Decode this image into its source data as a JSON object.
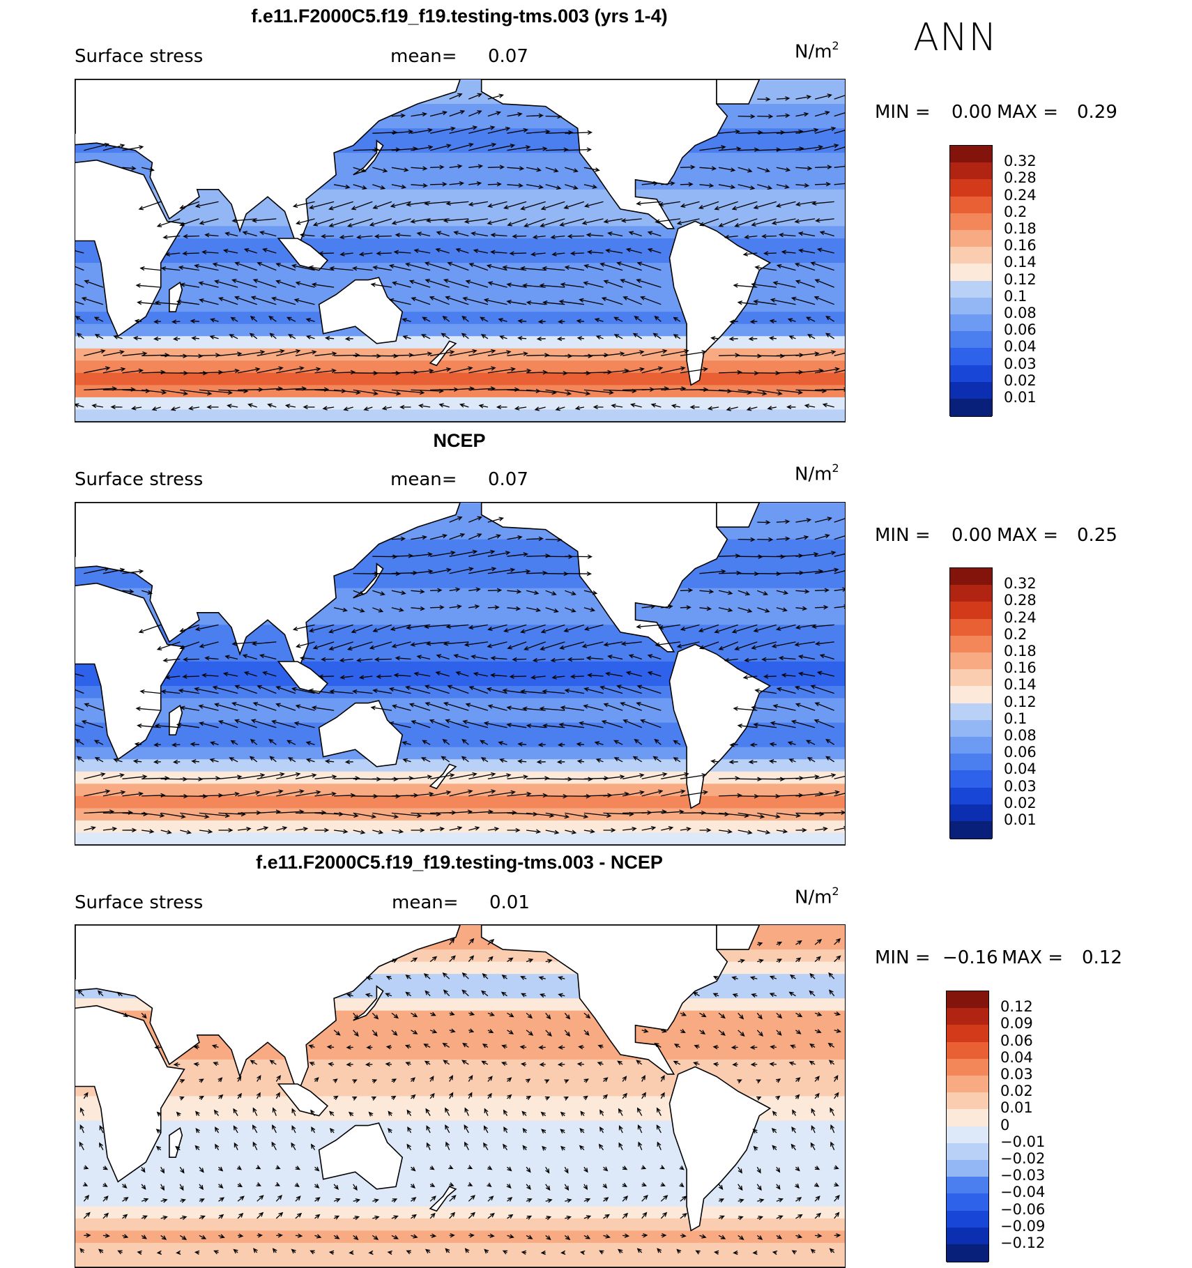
{
  "figure": {
    "season": "ANN",
    "colors": {
      "seq": [
        "#08207a",
        "#0b2fb0",
        "#1846d6",
        "#2e62ea",
        "#4b7fef",
        "#6d9af2",
        "#93b7f4",
        "#b9d1f6",
        "#dde8f8",
        "#fde9d9",
        "#fbcdb0",
        "#f8ab82",
        "#f3875a",
        "#e86033",
        "#d23a19",
        "#b02411",
        "#82140c"
      ]
    }
  },
  "chart_data": [
    {
      "type": "heatmap",
      "title": "f.e11.F2000C5.f19_f19.testing-tms.003 (yrs 1-4)",
      "variable": "Surface stress",
      "mean_label": "mean=",
      "mean_value": "0.07",
      "units_base": "N/m",
      "units_exp": "2",
      "min_label": "MIN =",
      "min_value": "0.00",
      "max_label": "MAX =",
      "max_value": "0.29",
      "colorbar_levels": [
        "0.32",
        "0.28",
        "0.24",
        "0.2",
        "0.18",
        "0.16",
        "0.14",
        "0.12",
        "0.1",
        "0.08",
        "0.06",
        "0.04",
        "0.03",
        "0.02",
        "0.01"
      ],
      "bands": [
        {
          "lat": 60,
          "value": 0.08
        },
        {
          "lat": 45,
          "value": 0.05
        },
        {
          "lat": 30,
          "value": 0.07
        },
        {
          "lat": 15,
          "value": 0.09
        },
        {
          "lat": 0,
          "value": 0.04
        },
        {
          "lat": -15,
          "value": 0.08
        },
        {
          "lat": -30,
          "value": 0.05
        },
        {
          "lat": -45,
          "value": 0.22
        },
        {
          "lat": -55,
          "value": 0.25
        },
        {
          "lat": -65,
          "value": 0.1
        }
      ],
      "wind_u": [
        {
          "lat": 60,
          "u": 0.6,
          "v": 0.1
        },
        {
          "lat": 45,
          "u": 1.0,
          "v": 0.15
        },
        {
          "lat": 30,
          "u": 0.6,
          "v": -0.05
        },
        {
          "lat": 15,
          "u": -0.9,
          "v": -0.2
        },
        {
          "lat": 0,
          "u": -0.6,
          "v": 0.05
        },
        {
          "lat": -15,
          "u": -0.9,
          "v": 0.2
        },
        {
          "lat": -30,
          "u": -0.3,
          "v": 0.1
        },
        {
          "lat": -45,
          "u": 1.0,
          "v": 0.1
        },
        {
          "lat": -55,
          "u": 1.2,
          "v": -0.05
        },
        {
          "lat": -65,
          "u": -0.4,
          "v": 0.0
        }
      ]
    },
    {
      "type": "heatmap",
      "title": "NCEP",
      "variable": "Surface stress",
      "mean_label": "mean=",
      "mean_value": "0.07",
      "units_base": "N/m",
      "units_exp": "2",
      "min_label": "MIN =",
      "min_value": "0.00",
      "max_label": "MAX =",
      "max_value": "0.25",
      "colorbar_levels": [
        "0.32",
        "0.28",
        "0.24",
        "0.2",
        "0.18",
        "0.16",
        "0.14",
        "0.12",
        "0.1",
        "0.08",
        "0.06",
        "0.04",
        "0.03",
        "0.02",
        "0.01"
      ],
      "bands": [
        {
          "lat": 60,
          "value": 0.07
        },
        {
          "lat": 45,
          "value": 0.04
        },
        {
          "lat": 30,
          "value": 0.07
        },
        {
          "lat": 15,
          "value": 0.05
        },
        {
          "lat": 0,
          "value": 0.03
        },
        {
          "lat": -15,
          "value": 0.07
        },
        {
          "lat": -30,
          "value": 0.04
        },
        {
          "lat": -45,
          "value": 0.18
        },
        {
          "lat": -55,
          "value": 0.21
        },
        {
          "lat": -65,
          "value": 0.12
        }
      ],
      "wind_u": [
        {
          "lat": 60,
          "u": 0.6,
          "v": 0.1
        },
        {
          "lat": 45,
          "u": 1.0,
          "v": 0.1
        },
        {
          "lat": 30,
          "u": 0.5,
          "v": -0.05
        },
        {
          "lat": 15,
          "u": -0.9,
          "v": -0.2
        },
        {
          "lat": 0,
          "u": -0.6,
          "v": 0.05
        },
        {
          "lat": -15,
          "u": -0.9,
          "v": 0.2
        },
        {
          "lat": -30,
          "u": -0.3,
          "v": 0.1
        },
        {
          "lat": -45,
          "u": 1.0,
          "v": 0.1
        },
        {
          "lat": -55,
          "u": 1.1,
          "v": -0.05
        },
        {
          "lat": -65,
          "u": 0.5,
          "v": 0.0
        }
      ]
    },
    {
      "type": "heatmap",
      "title": "f.e11.F2000C5.f19_f19.testing-tms.003 - NCEP",
      "variable": "Surface stress",
      "mean_label": "mean=",
      "mean_value": "0.01",
      "units_base": "N/m",
      "units_exp": "2",
      "min_label": "MIN =",
      "min_value": "−0.16",
      "max_label": "MAX =",
      "max_value": "0.12",
      "colorbar_levels": [
        "0.12",
        "0.09",
        "0.06",
        "0.04",
        "0.03",
        "0.02",
        "0.01",
        "0",
        "−0.01",
        "−0.02",
        "−0.03",
        "−0.04",
        "−0.06",
        "−0.09",
        "−0.12"
      ],
      "bands": [
        {
          "lat": 60,
          "value": 0.02
        },
        {
          "lat": 45,
          "value": -0.02
        },
        {
          "lat": 30,
          "value": 0.03
        },
        {
          "lat": 15,
          "value": 0.02
        },
        {
          "lat": 0,
          "value": 0.01
        },
        {
          "lat": -15,
          "value": -0.01
        },
        {
          "lat": -30,
          "value": 0.0
        },
        {
          "lat": -45,
          "value": -0.01
        },
        {
          "lat": -55,
          "value": 0.03
        },
        {
          "lat": -65,
          "value": 0.01
        }
      ],
      "wind_u": [
        {
          "lat": 60,
          "u": 0.3,
          "v": 0.2
        },
        {
          "lat": 45,
          "u": -0.3,
          "v": 0.2
        },
        {
          "lat": 30,
          "u": 0.3,
          "v": -0.2
        },
        {
          "lat": 15,
          "u": -0.3,
          "v": 0.1
        },
        {
          "lat": 0,
          "u": 0.2,
          "v": 0.2
        },
        {
          "lat": -15,
          "u": -0.2,
          "v": 0.3
        },
        {
          "lat": -30,
          "u": 0.2,
          "v": -0.2
        },
        {
          "lat": -45,
          "u": 0.3,
          "v": 0.2
        },
        {
          "lat": -55,
          "u": 0.3,
          "v": -0.1
        },
        {
          "lat": -65,
          "u": -0.2,
          "v": 0.1
        }
      ]
    }
  ]
}
